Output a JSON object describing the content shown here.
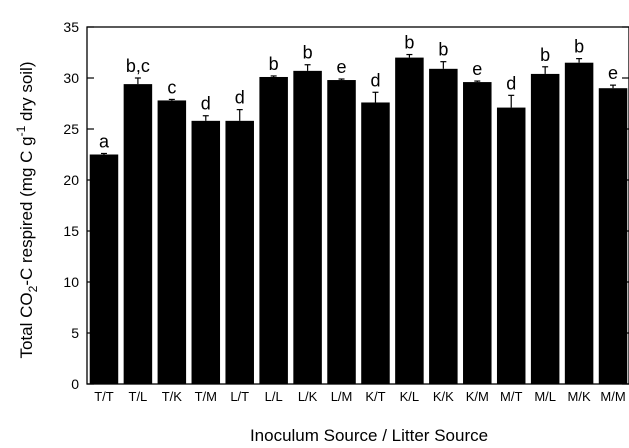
{
  "chart_data": {
    "type": "bar",
    "categories": [
      "T/T",
      "T/L",
      "T/K",
      "T/M",
      "L/T",
      "L/L",
      "L/K",
      "L/M",
      "K/T",
      "K/L",
      "K/K",
      "K/M",
      "M/T",
      "M/L",
      "M/K",
      "M/M"
    ],
    "values": [
      22.5,
      29.4,
      27.8,
      25.8,
      25.8,
      30.1,
      30.7,
      29.8,
      27.6,
      32.0,
      30.9,
      29.6,
      27.1,
      30.4,
      31.5,
      29.0
    ],
    "errors": [
      0.1,
      0.6,
      0.1,
      0.5,
      1.1,
      0.1,
      0.6,
      0.1,
      1.0,
      0.3,
      0.7,
      0.1,
      1.2,
      0.7,
      0.4,
      0.3
    ],
    "significance_labels": [
      "a",
      "b,c",
      "c",
      "d",
      "d",
      "b",
      "b",
      "e",
      "d",
      "b",
      "b",
      "e",
      "d",
      "b",
      "b",
      "e"
    ],
    "ylabel_prefix": "Total CO",
    "ylabel_sub": "2",
    "ylabel_mid": "-C respired (mg C g",
    "ylabel_sup": "-1",
    "ylabel_suffix": " dry soil)",
    "xlabel": "Inoculum Source / Litter Source",
    "ylim": [
      0,
      35
    ],
    "yticks": [
      0,
      5,
      10,
      15,
      20,
      25,
      30,
      35
    ],
    "bar_color": "#000000",
    "grid": false
  }
}
